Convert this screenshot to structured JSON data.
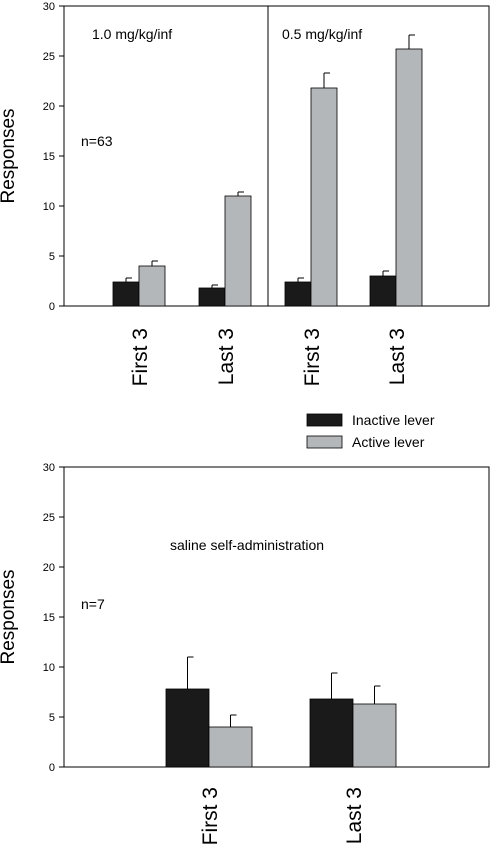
{
  "legend": {
    "items": [
      {
        "label": "Inactive lever",
        "color": "#1a1a1a"
      },
      {
        "label": "Active lever",
        "color": "#b4b7ba"
      }
    ]
  },
  "chart_data": [
    {
      "type": "bar",
      "ylabel": "Responses",
      "ylim": [
        0,
        30
      ],
      "yticks": [
        0,
        5,
        10,
        15,
        20,
        25,
        30
      ],
      "categories": [
        "First 3",
        "Last 3",
        "First 3",
        "Last 3"
      ],
      "panels": [
        {
          "label": "1.0 mg/kg/inf",
          "categories": [
            0,
            1
          ]
        },
        {
          "label": "0.5 mg/kg/inf",
          "categories": [
            2,
            3
          ]
        }
      ],
      "annotations": [
        "n=63"
      ],
      "series": [
        {
          "name": "Inactive lever",
          "color": "#1a1a1a",
          "values": [
            2.4,
            1.8,
            2.4,
            3.0
          ],
          "errors": [
            0.4,
            0.3,
            0.4,
            0.5
          ]
        },
        {
          "name": "Active lever",
          "color": "#b4b7ba",
          "values": [
            4.0,
            11.0,
            21.8,
            25.7
          ],
          "errors": [
            0.5,
            0.4,
            1.5,
            1.4
          ]
        }
      ]
    },
    {
      "type": "bar",
      "ylabel": "Responses",
      "ylim": [
        0,
        30
      ],
      "yticks": [
        0,
        5,
        10,
        15,
        20,
        25,
        30
      ],
      "categories": [
        "First 3",
        "Last 3"
      ],
      "annotations": [
        "saline self-administration",
        "n=7"
      ],
      "series": [
        {
          "name": "Inactive lever",
          "color": "#1a1a1a",
          "values": [
            7.8,
            6.8
          ],
          "errors": [
            3.2,
            2.6
          ]
        },
        {
          "name": "Active lever",
          "color": "#b4b7ba",
          "values": [
            4.0,
            6.3
          ],
          "errors": [
            1.2,
            1.8
          ]
        }
      ]
    }
  ]
}
